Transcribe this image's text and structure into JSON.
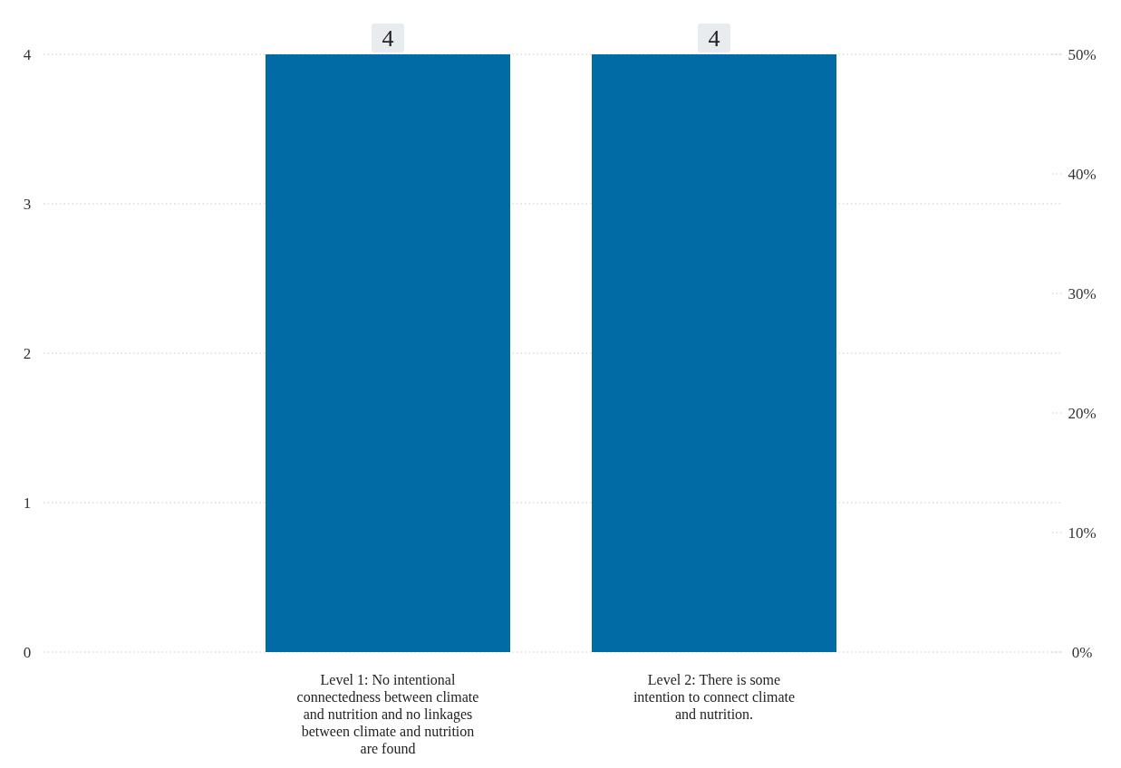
{
  "chart_data": {
    "type": "bar",
    "categories": [
      "Level 1: No intentional connectedness between climate and nutrition and no linkages between climate and nutrition are found",
      "Level 2: There is some intention to connect climate and nutrition."
    ],
    "values": [
      4,
      4
    ],
    "color": "#006ba4",
    "ylim": [
      0,
      4
    ],
    "yticks": [
      0,
      1,
      2,
      3,
      4
    ],
    "y2lim": [
      0,
      50
    ],
    "y2ticks": [
      {
        "value": 0,
        "label": "0%"
      },
      {
        "value": 10,
        "label": "10%"
      },
      {
        "value": 20,
        "label": "20%"
      },
      {
        "value": 30,
        "label": "30%"
      },
      {
        "value": 40,
        "label": "40%"
      },
      {
        "value": 50,
        "label": "50%"
      }
    ],
    "grid": "y",
    "data_labels": true
  }
}
